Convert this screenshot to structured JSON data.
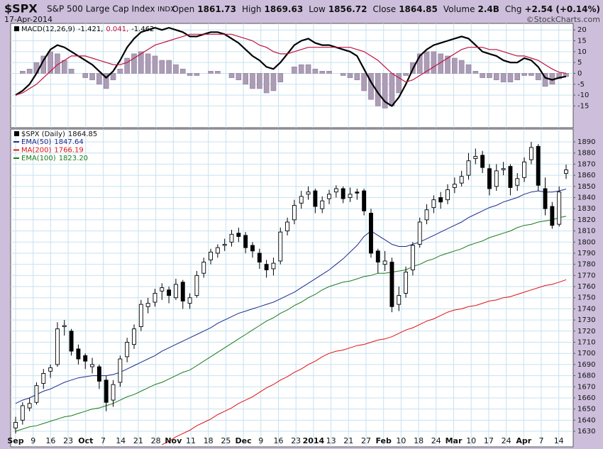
{
  "header": {
    "symbol": "$SPX",
    "name": "S&P 500 Large Cap Index",
    "exchange": "INDX",
    "date": "17-Apr-2014",
    "watermark": "©StockCharts.com",
    "stats": [
      {
        "label": "Open",
        "value": "1861.73"
      },
      {
        "label": "High",
        "value": "1869.63"
      },
      {
        "label": "Low",
        "value": "1856.72"
      },
      {
        "label": "Close",
        "value": "1864.85"
      },
      {
        "label": "Volume",
        "value": "2.4B"
      },
      {
        "label": "Chg",
        "value": "+2.54 (+0.14%)"
      }
    ]
  },
  "chart_data": [
    {
      "type": "macd",
      "ylim": [
        -25,
        23
      ],
      "yticks": [
        20,
        15,
        10,
        5,
        0,
        -5,
        -10,
        -15
      ],
      "grid": true,
      "series": [
        {
          "name": "MACD(12,26,9)",
          "legend_value": "-1.421,",
          "kind": "line",
          "color": "#000000",
          "values": [
            -10,
            -8,
            -5,
            0,
            6,
            11,
            13,
            12,
            10,
            8,
            6,
            4,
            1,
            -2,
            1,
            6,
            12,
            16,
            19,
            20,
            21,
            20,
            21,
            20,
            19,
            17,
            17,
            18,
            19,
            19,
            18,
            16,
            14,
            11,
            8,
            6,
            3,
            2,
            5,
            9,
            13,
            15,
            16,
            14,
            13,
            13,
            12,
            11,
            10,
            8,
            2,
            -4,
            -9,
            -13,
            -15,
            -11,
            -5,
            2,
            8,
            11,
            13,
            14,
            15,
            16,
            17,
            16,
            13,
            10,
            9,
            8,
            6,
            5,
            5,
            7,
            6,
            3,
            -2,
            -3,
            -2,
            -1.421
          ]
        },
        {
          "legend_value": "0.041,",
          "kind": "line",
          "color": "#c0103c",
          "values": [
            -10,
            -9,
            -7,
            -5,
            -2,
            1,
            4,
            6,
            8,
            8,
            8,
            7,
            6,
            5,
            4,
            4,
            5,
            7,
            9,
            11,
            13,
            14,
            15,
            16,
            17,
            18,
            18,
            18,
            18,
            18,
            18,
            18,
            17,
            16,
            15,
            13,
            12,
            10,
            9,
            9,
            10,
            11,
            12,
            12,
            12,
            12,
            12,
            12,
            12,
            11,
            10,
            8,
            6,
            3,
            0,
            -2,
            -4,
            -3,
            -1,
            1,
            3,
            5,
            7,
            9,
            11,
            12,
            12,
            12,
            11,
            11,
            10,
            9,
            8,
            8,
            7,
            6,
            4,
            2,
            0.5,
            0.041
          ]
        },
        {
          "legend_value": "-1.462",
          "kind": "histogram",
          "color": "#ad9cb6",
          "values": [
            0,
            1,
            2,
            5,
            8,
            10,
            9,
            6,
            2,
            0,
            -2,
            -3,
            -5,
            -7,
            -3,
            2,
            7,
            9,
            10,
            9,
            8,
            6,
            6,
            4,
            2,
            -1,
            -1,
            0,
            1,
            1,
            0,
            -2,
            -3,
            -5,
            -7,
            -7,
            -9,
            -8,
            -4,
            0,
            3,
            4,
            4,
            2,
            1,
            1,
            0,
            -1,
            -2,
            -3,
            -8,
            -12,
            -15,
            -16,
            -15,
            -9,
            -1,
            5,
            9,
            10,
            10,
            9,
            8,
            7,
            6,
            4,
            1,
            -2,
            -2,
            -3,
            -4,
            -4,
            -3,
            -1,
            -1,
            -3,
            -6,
            -5,
            -2.5,
            -1.462
          ]
        }
      ]
    },
    {
      "type": "candlestick",
      "name": "$SPX (Daily)",
      "color": "#000000",
      "ylim": [
        1616,
        1901.5
      ],
      "yticks": [
        1630,
        1640,
        1650,
        1660,
        1670,
        1680,
        1690,
        1700,
        1710,
        1720,
        1730,
        1740,
        1750,
        1760,
        1770,
        1780,
        1790,
        1800,
        1810,
        1820,
        1830,
        1840,
        1850,
        1860,
        1870,
        1880,
        1890
      ],
      "grid": true,
      "x_labels": [
        "Sep",
        "9",
        "16",
        "23",
        "Oct",
        "7",
        "14",
        "21",
        "28",
        "Nov",
        "11",
        "18",
        "25",
        "Dec",
        "9",
        "16",
        "23",
        "2014",
        "13",
        "21",
        "27",
        "Feb",
        "10",
        "18",
        "24",
        "Mar",
        "10",
        "17",
        "24",
        "Apr",
        "7",
        "14"
      ],
      "open": [
        1633,
        1640,
        1651,
        1656,
        1673,
        1684,
        1690,
        1724,
        1720,
        1704,
        1698,
        1688,
        1688,
        1676,
        1658,
        1674,
        1697,
        1708,
        1724,
        1742,
        1746,
        1756,
        1757,
        1750,
        1764,
        1745,
        1752,
        1772,
        1784,
        1790,
        1797,
        1800,
        1808,
        1806,
        1797,
        1790,
        1780,
        1776,
        1783,
        1810,
        1820,
        1835,
        1843,
        1846,
        1830,
        1839,
        1845,
        1848,
        1840,
        1845,
        1846,
        1826,
        1792,
        1780,
        1782,
        1744,
        1754,
        1775,
        1798,
        1820,
        1831,
        1840,
        1838,
        1849,
        1853,
        1860,
        1875,
        1878,
        1866,
        1850,
        1865,
        1868,
        1851,
        1858,
        1874,
        1886,
        1848,
        1832,
        1816,
        1861.73
      ],
      "high": [
        1643,
        1656,
        1660,
        1674,
        1686,
        1690,
        1728,
        1730,
        1722,
        1708,
        1700,
        1696,
        1690,
        1680,
        1676,
        1698,
        1714,
        1726,
        1748,
        1750,
        1758,
        1763,
        1760,
        1767,
        1766,
        1754,
        1774,
        1786,
        1794,
        1798,
        1803,
        1811,
        1813,
        1809,
        1800,
        1794,
        1784,
        1786,
        1813,
        1822,
        1838,
        1846,
        1850,
        1848,
        1841,
        1847,
        1851,
        1850,
        1849,
        1848,
        1848,
        1830,
        1794,
        1792,
        1786,
        1760,
        1778,
        1800,
        1822,
        1834,
        1842,
        1845,
        1852,
        1858,
        1864,
        1880,
        1884,
        1882,
        1870,
        1870,
        1872,
        1870,
        1862,
        1876,
        1890,
        1888,
        1858,
        1836,
        1850,
        1869.63
      ],
      "low": [
        1628,
        1636,
        1648,
        1654,
        1668,
        1678,
        1688,
        1716,
        1698,
        1690,
        1686,
        1682,
        1668,
        1648,
        1652,
        1670,
        1692,
        1704,
        1720,
        1736,
        1742,
        1748,
        1745,
        1748,
        1740,
        1740,
        1750,
        1768,
        1780,
        1786,
        1792,
        1796,
        1800,
        1790,
        1786,
        1776,
        1768,
        1770,
        1780,
        1806,
        1816,
        1830,
        1838,
        1826,
        1826,
        1834,
        1840,
        1835,
        1836,
        1838,
        1824,
        1786,
        1772,
        1774,
        1737,
        1738,
        1750,
        1770,
        1795,
        1816,
        1826,
        1830,
        1834,
        1844,
        1850,
        1856,
        1870,
        1862,
        1842,
        1846,
        1860,
        1842,
        1846,
        1854,
        1870,
        1846,
        1824,
        1812,
        1814,
        1856.72
      ],
      "close": [
        1638,
        1653,
        1655,
        1671,
        1682,
        1687,
        1722,
        1725,
        1702,
        1695,
        1693,
        1690,
        1675,
        1656,
        1672,
        1695,
        1710,
        1722,
        1744,
        1745,
        1754,
        1759,
        1752,
        1762,
        1747,
        1750,
        1770,
        1782,
        1791,
        1795,
        1798,
        1807,
        1805,
        1795,
        1792,
        1782,
        1775,
        1781,
        1809,
        1818,
        1833,
        1841,
        1845,
        1832,
        1837,
        1843,
        1848,
        1839,
        1843,
        1844,
        1828,
        1790,
        1782,
        1783,
        1742,
        1752,
        1773,
        1797,
        1818,
        1829,
        1838,
        1836,
        1847,
        1852,
        1859,
        1873,
        1877,
        1867,
        1848,
        1864,
        1866,
        1849,
        1857,
        1872,
        1885,
        1851,
        1830,
        1815,
        1845,
        1864.85
      ],
      "series": [
        {
          "name": "EMA(50)",
          "legend_value": "1847.64",
          "color": "#1c2a8c",
          "values": [
            1655,
            1658,
            1660,
            1663,
            1666,
            1668,
            1671,
            1674,
            1676,
            1678,
            1679,
            1680,
            1680,
            1680,
            1681,
            1683,
            1686,
            1689,
            1692,
            1695,
            1698,
            1702,
            1705,
            1708,
            1711,
            1714,
            1717,
            1720,
            1723,
            1727,
            1730,
            1733,
            1736,
            1738,
            1740,
            1742,
            1744,
            1746,
            1749,
            1752,
            1755,
            1759,
            1763,
            1767,
            1771,
            1775,
            1780,
            1785,
            1791,
            1797,
            1805,
            1810,
            1806,
            1802,
            1798,
            1796,
            1796,
            1798,
            1800,
            1803,
            1806,
            1809,
            1812,
            1815,
            1818,
            1822,
            1825,
            1828,
            1831,
            1833,
            1836,
            1838,
            1840,
            1843,
            1845,
            1846,
            1845,
            1845,
            1846,
            1847.64
          ]
        },
        {
          "name": "MA(200)",
          "legend_value": "1766.19",
          "color": "#e01010",
          "values": [
            null,
            null,
            null,
            null,
            null,
            null,
            null,
            null,
            null,
            null,
            null,
            null,
            null,
            null,
            null,
            null,
            null,
            null,
            null,
            null,
            null,
            1618,
            1621,
            1625,
            1628,
            1631,
            1635,
            1638,
            1641,
            1645,
            1648,
            1651,
            1655,
            1658,
            1661,
            1665,
            1669,
            1672,
            1676,
            1679,
            1683,
            1686,
            1690,
            1693,
            1697,
            1700,
            1702,
            1703,
            1705,
            1707,
            1708,
            1710,
            1712,
            1713,
            1715,
            1718,
            1721,
            1723,
            1726,
            1729,
            1731,
            1734,
            1737,
            1739,
            1740,
            1742,
            1743,
            1745,
            1747,
            1748,
            1750,
            1751,
            1753,
            1755,
            1757,
            1759,
            1761,
            1762,
            1764,
            1766.19
          ]
        },
        {
          "name": "EMA(100)",
          "legend_value": "1823.20",
          "color": "#1a7a1a",
          "values": [
            1630,
            1632,
            1634,
            1635,
            1637,
            1639,
            1641,
            1643,
            1644,
            1646,
            1648,
            1650,
            1651,
            1653,
            1655,
            1658,
            1661,
            1663,
            1666,
            1669,
            1672,
            1674,
            1677,
            1680,
            1683,
            1685,
            1689,
            1693,
            1697,
            1701,
            1705,
            1709,
            1713,
            1717,
            1721,
            1725,
            1729,
            1732,
            1736,
            1739,
            1743,
            1746,
            1750,
            1753,
            1757,
            1760,
            1762,
            1764,
            1765,
            1767,
            1769,
            1770,
            1772,
            1772,
            1773,
            1774,
            1775,
            1778,
            1780,
            1783,
            1785,
            1788,
            1790,
            1792,
            1794,
            1797,
            1799,
            1801,
            1804,
            1806,
            1808,
            1810,
            1813,
            1815,
            1816,
            1818,
            1819,
            1820,
            1822,
            1823.2
          ]
        }
      ]
    }
  ]
}
